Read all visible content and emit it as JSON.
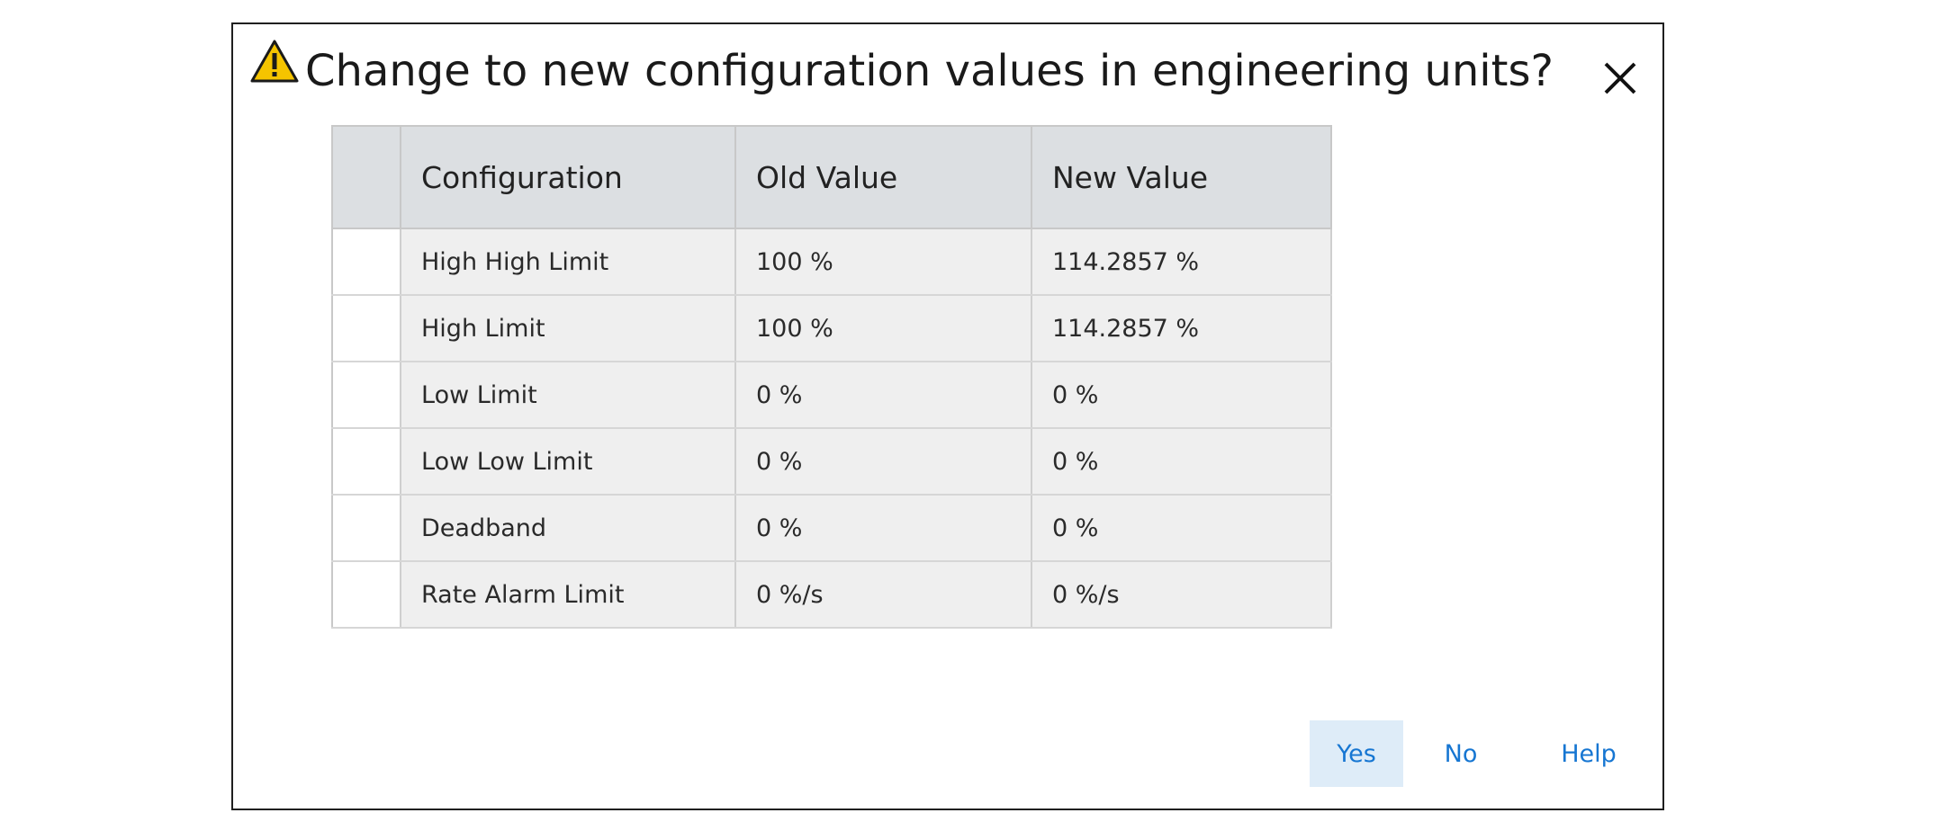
{
  "dialog": {
    "title": "Change to new configuration values in engineering units?",
    "warning_icon": "warning-triangle-icon",
    "close_icon": "close-icon",
    "colors": {
      "warning_fill": "#f5c400",
      "header_bg": "#dcdfe2",
      "cell_bg": "#efefef",
      "button_text": "#1676d2",
      "primary_button_bg": "#deecf8"
    }
  },
  "table": {
    "headers": [
      "Configuration",
      "Old Value",
      "New Value"
    ],
    "rows": [
      {
        "configuration": "High High Limit",
        "old": "100 %",
        "new": "114.2857 %"
      },
      {
        "configuration": "High Limit",
        "old": "100 %",
        "new": "114.2857 %"
      },
      {
        "configuration": "Low Limit",
        "old": "0 %",
        "new": "0 %"
      },
      {
        "configuration": "Low Low Limit",
        "old": "0 %",
        "new": "0 %"
      },
      {
        "configuration": "Deadband",
        "old": "0 %",
        "new": "0 %"
      },
      {
        "configuration": "Rate Alarm Limit",
        "old": "0 %/s",
        "new": "0 %/s"
      }
    ]
  },
  "buttons": {
    "yes": "Yes",
    "no": "No",
    "help": "Help"
  }
}
